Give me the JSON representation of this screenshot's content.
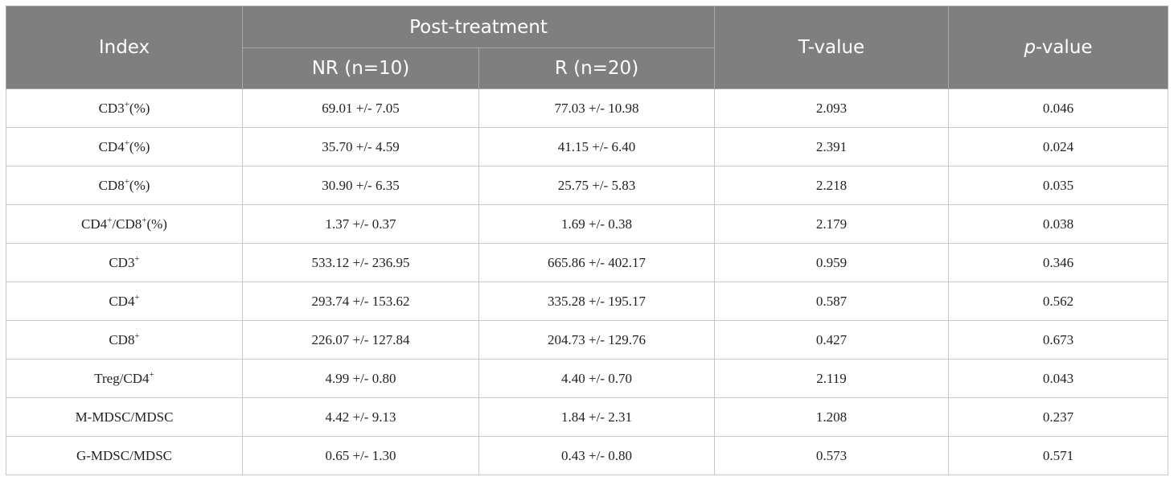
{
  "header": {
    "index": "Index",
    "group": "Post-treatment",
    "nr": "NR (n=10)",
    "r": "R (n=20)",
    "t_value": "T-value",
    "p_italic": "p",
    "p_rest": "-value"
  },
  "rows": [
    {
      "index_parts": [
        "CD3",
        "+",
        "(%)"
      ],
      "nr": "69.01 +/- 7.05",
      "r": "77.03 +/- 10.98",
      "t": "2.093",
      "p": "0.046"
    },
    {
      "index_parts": [
        "CD4",
        "+",
        "(%)"
      ],
      "nr": "35.70 +/- 4.59",
      "r": "41.15 +/- 6.40",
      "t": "2.391",
      "p": "0.024"
    },
    {
      "index_parts": [
        "CD8",
        "+",
        "(%)"
      ],
      "nr": "30.90 +/- 6.35",
      "r": "25.75 +/- 5.83",
      "t": "2.218",
      "p": "0.035"
    },
    {
      "index_parts": [
        "CD4",
        "+",
        "/CD8",
        "+",
        "(%)"
      ],
      "nr": "1.37 +/- 0.37",
      "r": "1.69 +/- 0.38",
      "t": "2.179",
      "p": "0.038"
    },
    {
      "index_parts": [
        "CD3",
        "+"
      ],
      "nr": "533.12 +/- 236.95",
      "r": "665.86 +/- 402.17",
      "t": "0.959",
      "p": "0.346"
    },
    {
      "index_parts": [
        "CD4",
        "+"
      ],
      "nr": "293.74 +/- 153.62",
      "r": "335.28 +/- 195.17",
      "t": "0.587",
      "p": "0.562"
    },
    {
      "index_parts": [
        "CD8",
        "+"
      ],
      "nr": "226.07 +/- 127.84",
      "r": "204.73 +/- 129.76",
      "t": "0.427",
      "p": "0.673"
    },
    {
      "index_parts": [
        "Treg/CD4",
        "+"
      ],
      "nr": "4.99 +/- 0.80",
      "r": "4.40 +/- 0.70",
      "t": "2.119",
      "p": "0.043"
    },
    {
      "index_parts": [
        "M-MDSC/MDSC"
      ],
      "nr": "4.42 +/- 9.13",
      "r": "1.84 +/- 2.31",
      "t": "1.208",
      "p": "0.237"
    },
    {
      "index_parts": [
        "G-MDSC/MDSC"
      ],
      "nr": "0.65 +/- 1.30",
      "r": "0.43 +/- 0.80",
      "t": "0.573",
      "p": "0.571"
    }
  ]
}
